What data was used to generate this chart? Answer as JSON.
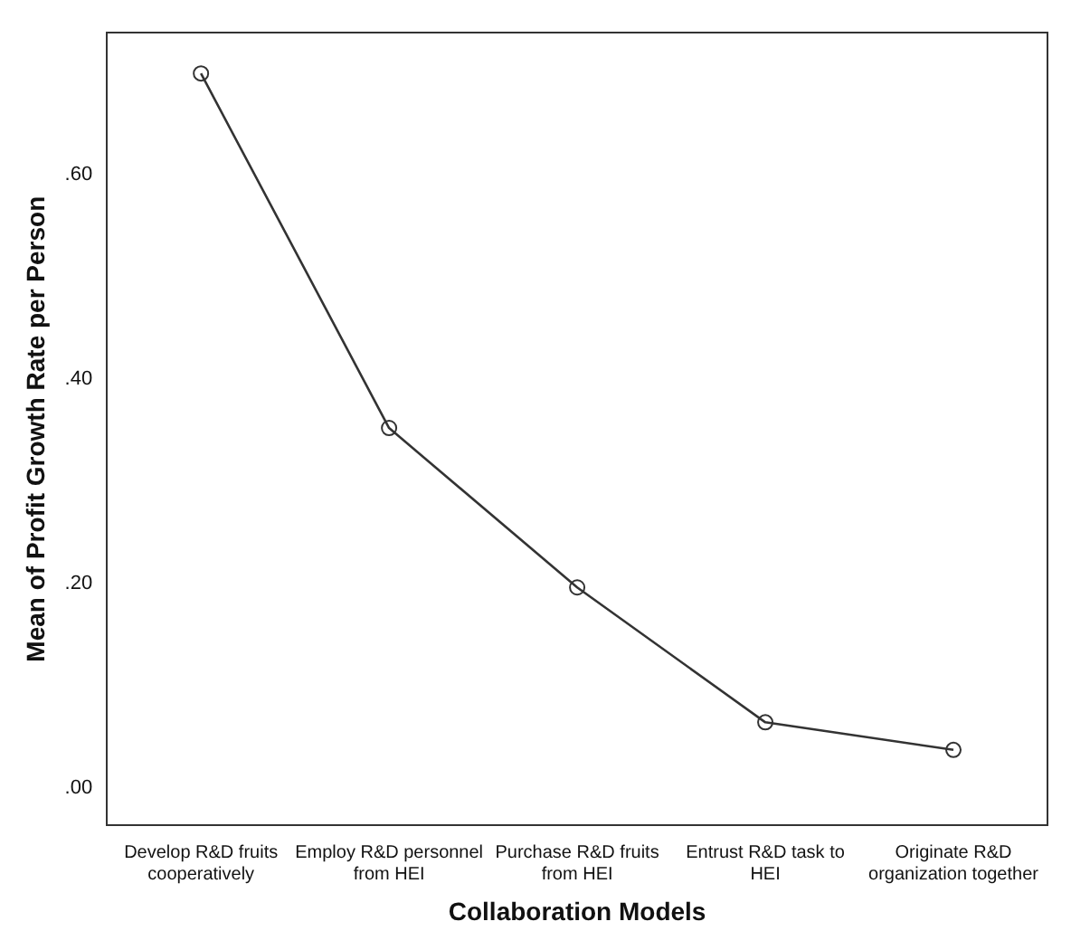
{
  "chart_data": {
    "type": "line",
    "xlabel": "Collaboration Models",
    "ylabel": "Mean of Profit Growth Rate per Person",
    "categories": [
      "Develop R&D fruits cooperatively",
      "Employ R&D personnel from HEI",
      "Purchase R&D fruits from HEI",
      "Entrust R&D task to HEI",
      "Originate R&D organization together"
    ],
    "series": [
      {
        "color": "#333333",
        "values": [
          0.699,
          0.352,
          0.196,
          0.064,
          0.037
        ]
      }
    ],
    "ylim": [
      -0.037,
      0.739
    ],
    "yticks": [
      {
        "value": 0,
        "label": ".00"
      },
      {
        "value": 0.2,
        "label": ".20"
      },
      {
        "value": 0.4,
        "label": ".40"
      },
      {
        "value": 0.6,
        "label": ".60"
      }
    ],
    "grid": false,
    "legend": false,
    "marker": "circle",
    "line_style": "solid"
  }
}
